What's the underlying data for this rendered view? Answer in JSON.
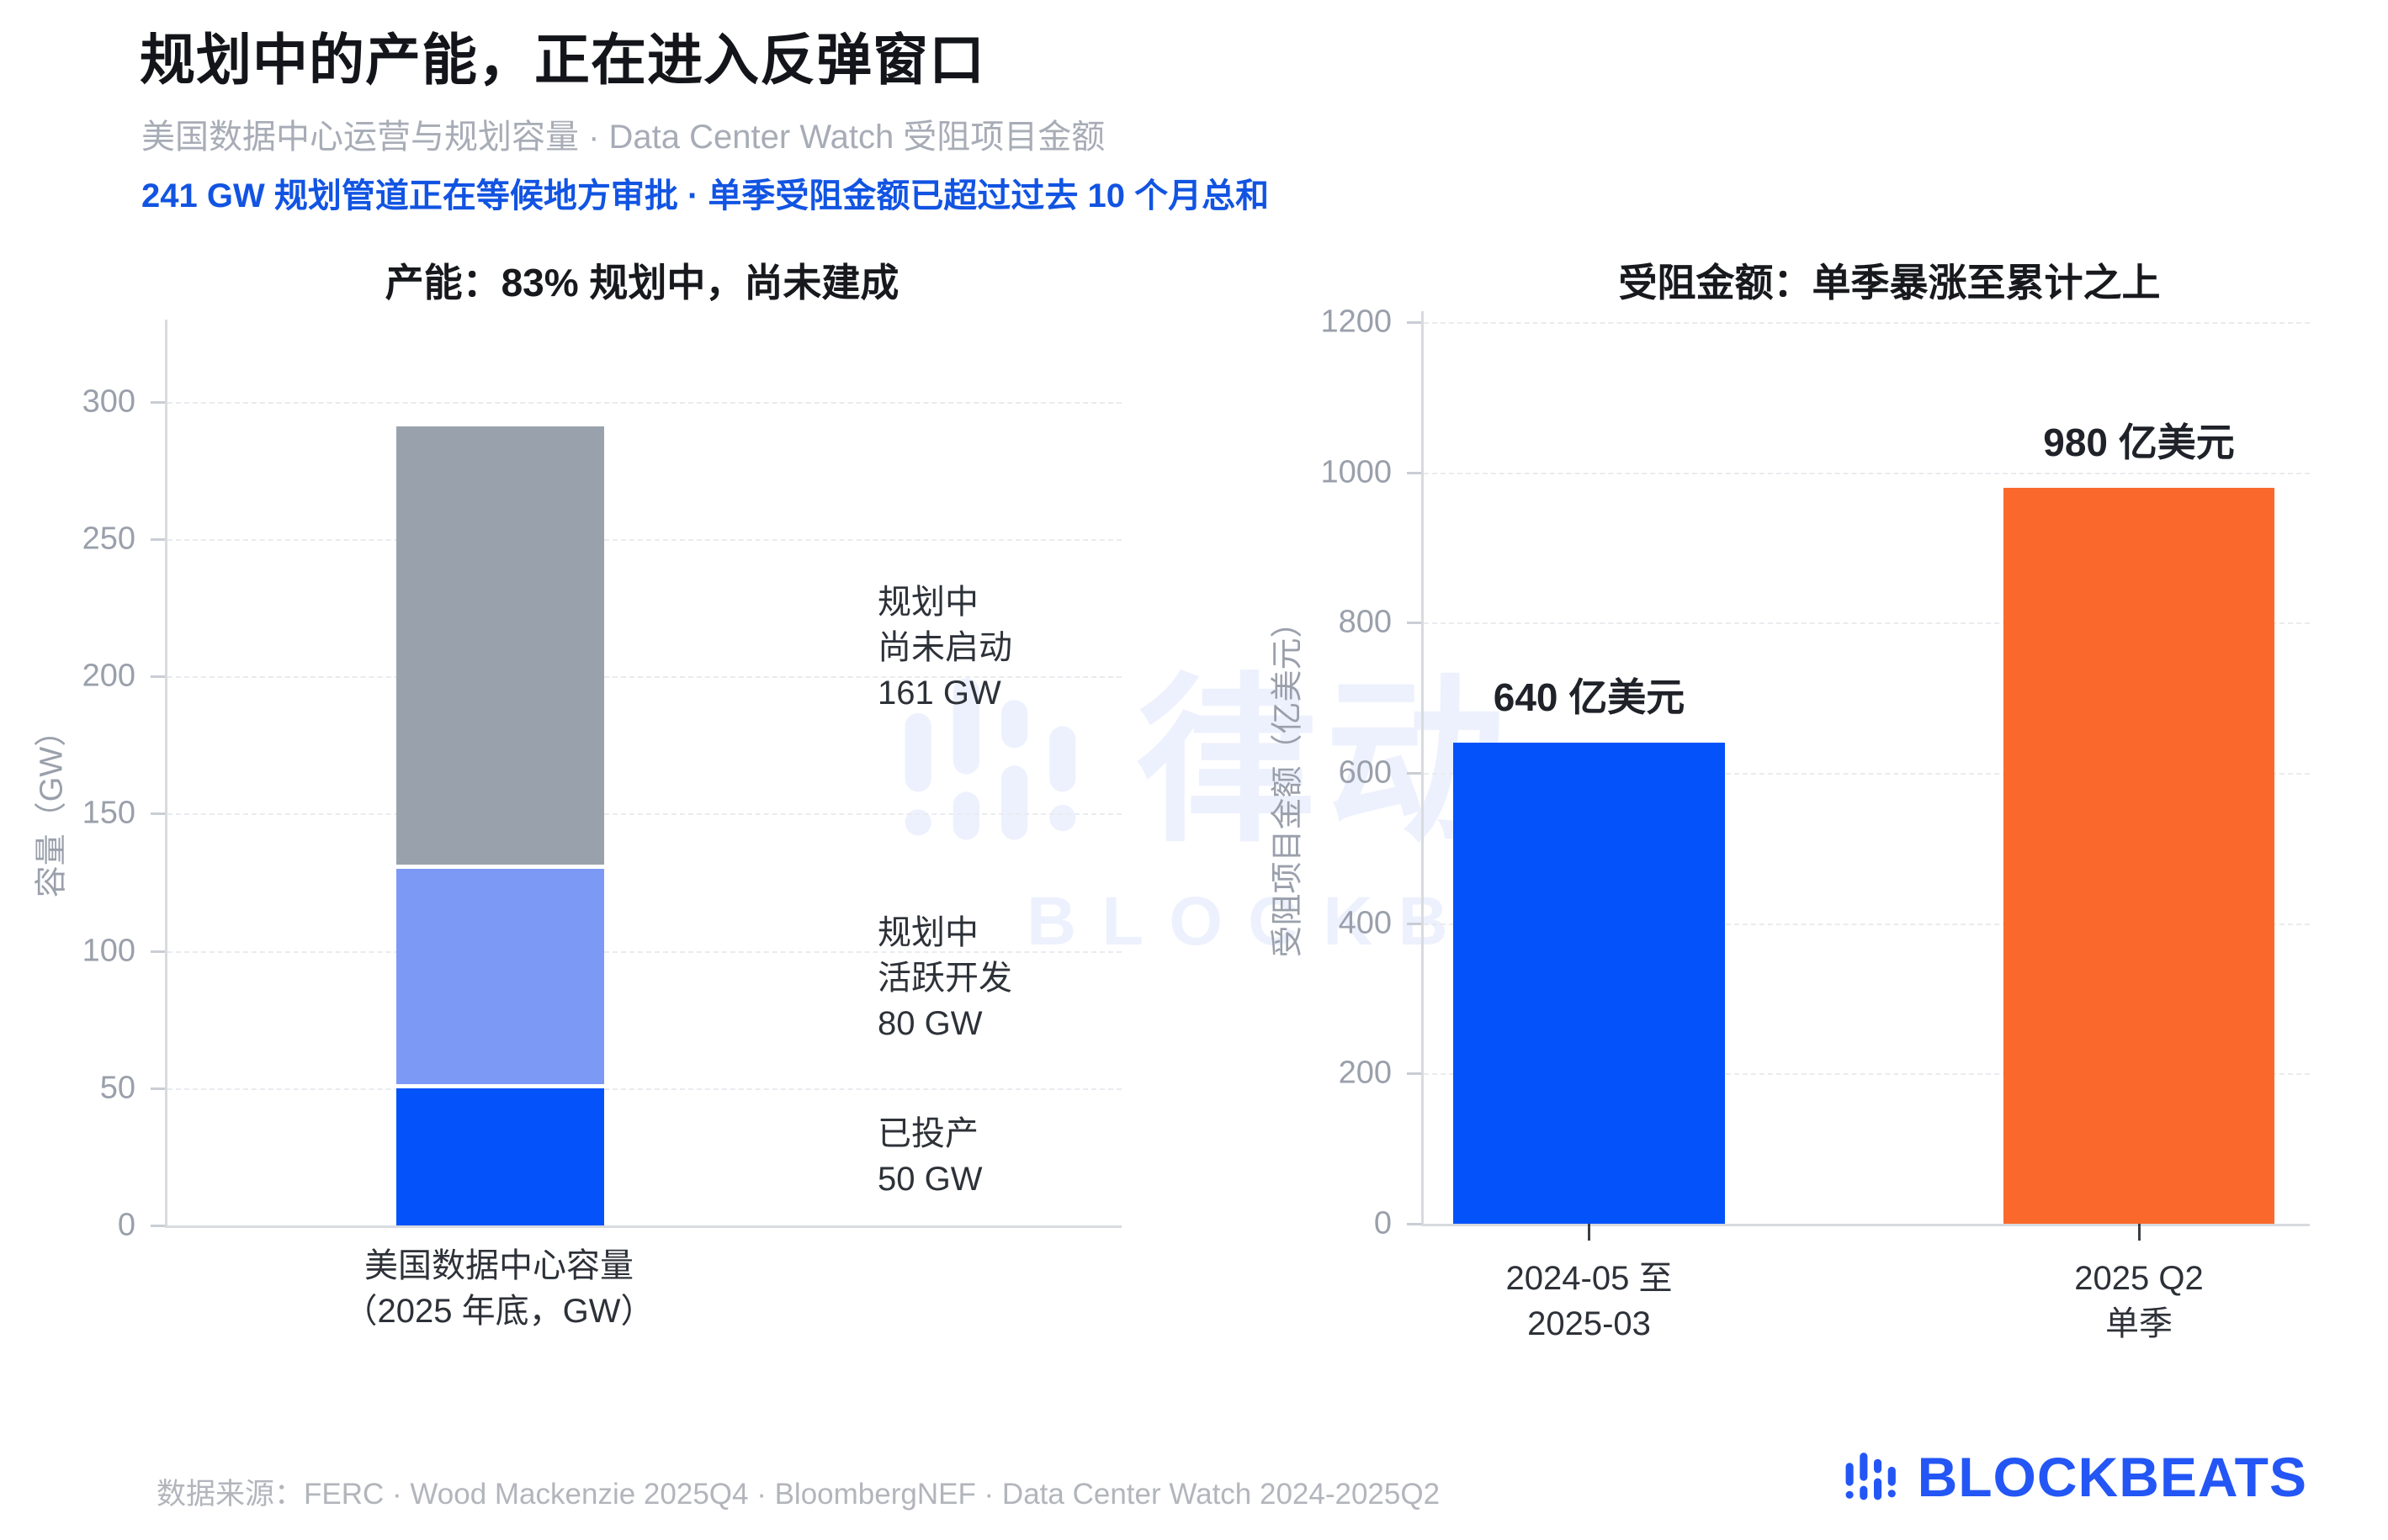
{
  "header": {
    "title": "规划中的产能，正在进入反弹窗口",
    "subtitle": "美国数据中心运营与规划容量 · Data Center Watch 受阻项目金额",
    "highlight": "241 GW 规划管道正在等候地方审批 · 单季受阻金额已超过过去 10 个月总和"
  },
  "watermark": {
    "cn": "律动",
    "en": "BLOCKBEATS"
  },
  "footer": {
    "source": "数据来源：FERC · Wood Mackenzie 2025Q4 · BloombergNEF · Data Center Watch 2024-2025Q2",
    "brand": "BLOCKBEATS"
  },
  "colors": {
    "accent_blue": "#0452fa",
    "periwinkle": "#7d99f6",
    "gray": "#99a2ac",
    "orange": "#fa692b",
    "highlight_text": "#1254e2",
    "axis_text": "#9aa0ab",
    "grid": "#e9ebef"
  },
  "chart_data": [
    {
      "type": "bar",
      "variant": "stacked",
      "title": "产能：83% 规划中，尚未建成",
      "ylabel": "容量（GW）",
      "xlabel_lines": [
        "美国数据中心容量",
        "（2025 年底，GW）"
      ],
      "categories": [
        "美国数据中心容量（2025 年底，GW）"
      ],
      "yticks": [
        0,
        50,
        100,
        150,
        200,
        250,
        300
      ],
      "ylim": [
        0,
        330
      ],
      "grid": true,
      "series": [
        {
          "name": "已投产",
          "value": 50,
          "color": "#0452fa",
          "annotation": [
            "已投产",
            "50 GW"
          ]
        },
        {
          "name": "规划中 活跃开发",
          "value": 80,
          "color": "#7d99f6",
          "annotation": [
            "规划中",
            "活跃开发",
            "80 GW"
          ]
        },
        {
          "name": "规划中 尚未启动",
          "value": 161,
          "color": "#99a2ac",
          "annotation": [
            "规划中",
            "尚未启动",
            "161 GW"
          ]
        }
      ],
      "total": 291
    },
    {
      "type": "bar",
      "title": "受阻金额：单季暴涨至累计之上",
      "ylabel": "受阻项目金额（亿美元）",
      "yticks": [
        0,
        200,
        400,
        600,
        800,
        1000,
        1200
      ],
      "ylim": [
        0,
        1240
      ],
      "grid": true,
      "categories": [
        [
          "2024-05 至",
          "2025-03"
        ],
        [
          "2025 Q2",
          "单季"
        ]
      ],
      "values": [
        640,
        980
      ],
      "value_labels": [
        "640 亿美元",
        "980 亿美元"
      ],
      "bar_colors": [
        "#0452fa",
        "#fa692b"
      ]
    }
  ]
}
